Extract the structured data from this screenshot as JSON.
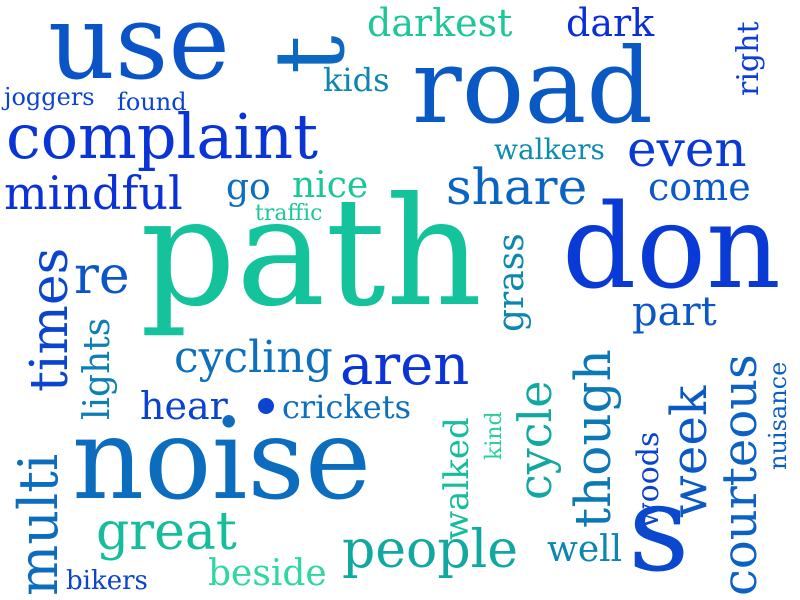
{
  "palette": {
    "deep_blue": "#0a2fd8",
    "royal_blue": "#0b45cf",
    "steel_blue": "#0d68c0",
    "teal_blue": "#0c86b0",
    "teal": "#10a8a0",
    "aqua_green": "#16c99a",
    "mint": "#2fd7a2"
  },
  "words": [
    "use",
    "t",
    "road",
    "darkest",
    "dark",
    "right",
    "kids",
    "joggers",
    "found",
    "complaint",
    "walkers",
    "even",
    "mindful",
    "go",
    "nice",
    "share",
    "come",
    "traffic",
    "path",
    "don",
    "times",
    "re",
    "grass",
    "part",
    "lights",
    "cycling",
    "aren",
    "though",
    "courteous",
    "hear",
    "crickets",
    "nuisance",
    "week",
    "noise",
    "cycle",
    "walked",
    "kind",
    "woods",
    "multi",
    "great",
    "people",
    "well",
    "s",
    "beside",
    "bikers"
  ],
  "dot_color": "#0b45cf"
}
